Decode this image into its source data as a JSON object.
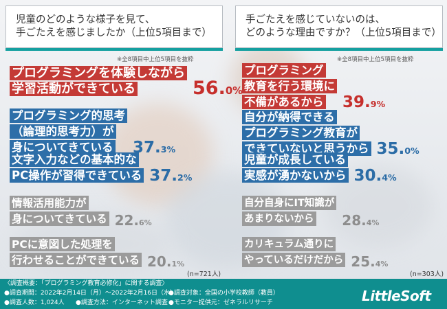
{
  "chart_data": [
    {
      "type": "bar",
      "title": [
        "児童のどのような様子を見て、",
        "手ごたえを感じましたか（上位5項目まで）"
      ],
      "note": "※全8項目中上位5項目を抜粋",
      "n": "(n=721人)",
      "categories": [
        [
          "プログラミングを体験しながら",
          "学習活動ができている"
        ],
        [
          "プログラミング的思考",
          "（論理的思考力）が",
          "身についてきている"
        ],
        [
          "文字入力などの基本的な",
          "PC操作が習得できている"
        ],
        [
          "情報活用能力が",
          "身についてきている"
        ],
        [
          "PCに意図した処理を",
          "行わせることができている"
        ]
      ],
      "values": [
        "56.0",
        "37.3",
        "37.2",
        "22.6",
        "20.1"
      ],
      "unit": "%",
      "colors": [
        "red",
        "blue",
        "blue",
        "gray",
        "gray"
      ]
    },
    {
      "type": "bar",
      "title": [
        "手ごたえを感じていないのは、",
        "どのような理由ですか？（上位5項目まで）"
      ],
      "note": "※全8項目中上位5項目を抜粋",
      "n": "(n=303人)",
      "categories": [
        [
          "プログラミング",
          "教育を行う環境に",
          "不備があるから"
        ],
        [
          "自分が納得できる",
          "プログラミング教育が",
          "できていないと思うから"
        ],
        [
          "児童が成長している",
          "実感が湧かないから"
        ],
        [
          "自分自身にIT知識が",
          "あまりないから"
        ],
        [
          "カリキュラム通りに",
          "やっているだけだから"
        ]
      ],
      "values": [
        "39.9",
        "35.0",
        "30.4",
        "28.4",
        "25.4"
      ],
      "unit": "%",
      "colors": [
        "red",
        "blue",
        "blue",
        "gray",
        "gray"
      ]
    }
  ],
  "footer": {
    "lines": [
      "〈調査概要：「プログラミング教育必修化」に関する調査〉",
      "●調査期間：2022年2月14日（月）〜2022年2月16日（水）",
      "●調査人数：1,024人",
      "●調査方法：インターネット調査",
      "●調査対象：全国の小学校教師（教員）",
      "●モニター提供元：ゼネラルリサーチ"
    ],
    "logo": "LittleSoft"
  },
  "colors": {
    "red": "#c43a36",
    "blue": "#2d6ea8",
    "gray": "#9b9b9b",
    "teal": "#0f8e8f"
  }
}
